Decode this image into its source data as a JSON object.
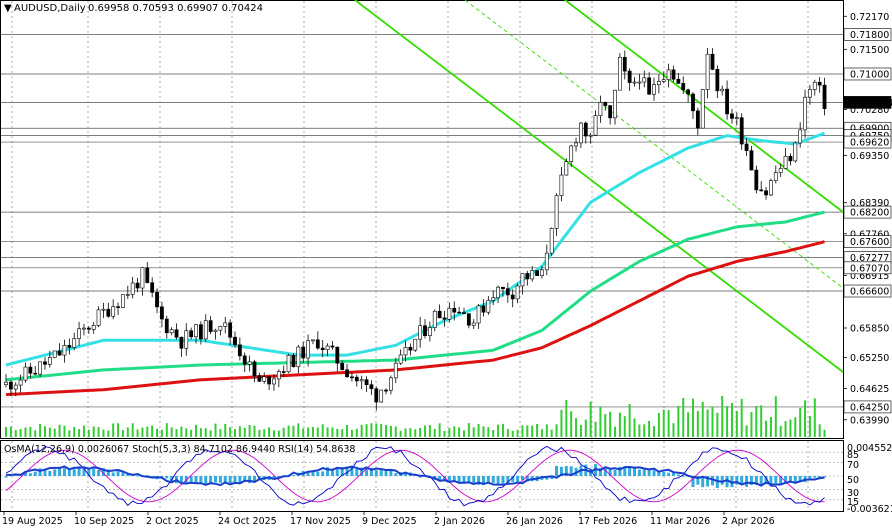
{
  "header": {
    "symbol": "AUDUSD,Daily",
    "ohlc": "0.69958 0.70593 0.69907 0.70424"
  },
  "oscillator_header": "OsMA(12,26,9) 0.0026067  Stoch(5,3,3) 84.7102 86.9440  RSI(14) 54.8638",
  "colors": {
    "bull_candle": "#000000",
    "bear_candle": "#000000",
    "ema_fast": "#33e0e6",
    "ema_mid": "#22dd88",
    "ema_slow": "#dd1111",
    "channel": "#33dd00",
    "volume": "#33cc33",
    "osma_hist": "#33aadd",
    "stoch_main": "#0000cc",
    "stoch_signal": "#cc00cc",
    "rsi": "#1a3ecc"
  },
  "chart_data": {
    "type": "candlestick",
    "symbol": "AUDUSD",
    "timeframe": "Daily",
    "ylim": [
      0.6362,
      0.725
    ],
    "price_axis_labels": [
      "0.72170",
      "0.71500",
      "0.70280",
      "0.69350",
      "0.68390",
      "0.67760",
      "0.66915",
      "0.65850",
      "0.65250",
      "0.64625",
      "0.63990"
    ],
    "level_tags": [
      {
        "value": 0.718,
        "label": "0.71800",
        "style": "line"
      },
      {
        "value": 0.71,
        "label": "0.71000",
        "style": "line"
      },
      {
        "value": 0.70424,
        "label": "0.70424",
        "style": "current"
      },
      {
        "value": 0.699,
        "label": "0.69900",
        "style": "line"
      },
      {
        "value": 0.6975,
        "label": "0.69750",
        "style": "line"
      },
      {
        "value": 0.6962,
        "label": "0.69620",
        "style": "line"
      },
      {
        "value": 0.682,
        "label": "0.68200",
        "style": "line"
      },
      {
        "value": 0.676,
        "label": "0.67600",
        "style": "line"
      },
      {
        "value": 0.67277,
        "label": "0.67277",
        "style": "line"
      },
      {
        "value": 0.6707,
        "label": "0.67070",
        "style": "line"
      },
      {
        "value": 0.666,
        "label": "0.66600",
        "style": "line"
      },
      {
        "value": 0.6425,
        "label": "0.64250",
        "style": "line"
      }
    ],
    "dates": [
      "19 Aug 2025",
      "10 Sep 2025",
      "2 Oct 2025",
      "24 Oct 2025",
      "17 Nov 2025",
      "9 Dec 2025",
      "2 Jan 2026",
      "26 Jan 2026",
      "17 Feb 2026",
      "11 Mar 2026",
      "2 Apr 2026"
    ],
    "close_path": [
      [
        0,
        0.647
      ],
      [
        6,
        0.65
      ],
      [
        12,
        0.654
      ],
      [
        18,
        0.66
      ],
      [
        24,
        0.665
      ],
      [
        28,
        0.669
      ],
      [
        32,
        0.66
      ],
      [
        36,
        0.656
      ],
      [
        40,
        0.658
      ],
      [
        44,
        0.66
      ],
      [
        48,
        0.654
      ],
      [
        52,
        0.647
      ],
      [
        56,
        0.65
      ],
      [
        60,
        0.653
      ],
      [
        64,
        0.656
      ],
      [
        68,
        0.652
      ],
      [
        72,
        0.648
      ],
      [
        76,
        0.645
      ],
      [
        80,
        0.65
      ],
      [
        84,
        0.656
      ],
      [
        88,
        0.661
      ],
      [
        92,
        0.663
      ],
      [
        96,
        0.66
      ],
      [
        100,
        0.666
      ],
      [
        104,
        0.666
      ],
      [
        106,
        0.669
      ],
      [
        110,
        0.669
      ],
      [
        112,
        0.68
      ],
      [
        114,
        0.688
      ],
      [
        116,
        0.695
      ],
      [
        118,
        0.7
      ],
      [
        120,
        0.696
      ],
      [
        122,
        0.705
      ],
      [
        124,
        0.7
      ],
      [
        126,
        0.712
      ],
      [
        128,
        0.707
      ],
      [
        130,
        0.71
      ],
      [
        132,
        0.705
      ],
      [
        134,
        0.709
      ],
      [
        136,
        0.712
      ],
      [
        138,
        0.708
      ],
      [
        140,
        0.705
      ],
      [
        142,
        0.7
      ],
      [
        144,
        0.715
      ],
      [
        146,
        0.708
      ],
      [
        148,
        0.703
      ],
      [
        150,
        0.7
      ],
      [
        152,
        0.695
      ],
      [
        154,
        0.688
      ],
      [
        156,
        0.686
      ],
      [
        158,
        0.69
      ],
      [
        160,
        0.692
      ],
      [
        162,
        0.695
      ],
      [
        164,
        0.705
      ],
      [
        166,
        0.708
      ],
      [
        168,
        0.7042
      ]
    ],
    "series": [
      {
        "name": "EMA fast",
        "color": "#33e0e6",
        "points": [
          [
            0,
            0.651
          ],
          [
            20,
            0.656
          ],
          [
            40,
            0.656
          ],
          [
            60,
            0.653
          ],
          [
            70,
            0.653
          ],
          [
            80,
            0.655
          ],
          [
            90,
            0.66
          ],
          [
            100,
            0.664
          ],
          [
            110,
            0.671
          ],
          [
            120,
            0.684
          ],
          [
            130,
            0.69
          ],
          [
            140,
            0.695
          ],
          [
            148,
            0.6975
          ],
          [
            155,
            0.6965
          ],
          [
            162,
            0.6958
          ],
          [
            168,
            0.698
          ]
        ]
      },
      {
        "name": "EMA mid",
        "color": "#22dd88",
        "points": [
          [
            0,
            0.648
          ],
          [
            20,
            0.65
          ],
          [
            40,
            0.651
          ],
          [
            60,
            0.6515
          ],
          [
            80,
            0.652
          ],
          [
            100,
            0.654
          ],
          [
            110,
            0.658
          ],
          [
            120,
            0.666
          ],
          [
            130,
            0.672
          ],
          [
            140,
            0.6765
          ],
          [
            150,
            0.679
          ],
          [
            160,
            0.68
          ],
          [
            168,
            0.682
          ]
        ]
      },
      {
        "name": "EMA slow",
        "color": "#dd1111",
        "points": [
          [
            0,
            0.645
          ],
          [
            20,
            0.646
          ],
          [
            40,
            0.648
          ],
          [
            60,
            0.649
          ],
          [
            80,
            0.65
          ],
          [
            100,
            0.652
          ],
          [
            110,
            0.6545
          ],
          [
            120,
            0.659
          ],
          [
            130,
            0.664
          ],
          [
            140,
            0.669
          ],
          [
            150,
            0.672
          ],
          [
            160,
            0.674
          ],
          [
            168,
            0.676
          ]
        ]
      }
    ],
    "ylabel": "",
    "xlabel": "",
    "grid": true
  }
}
